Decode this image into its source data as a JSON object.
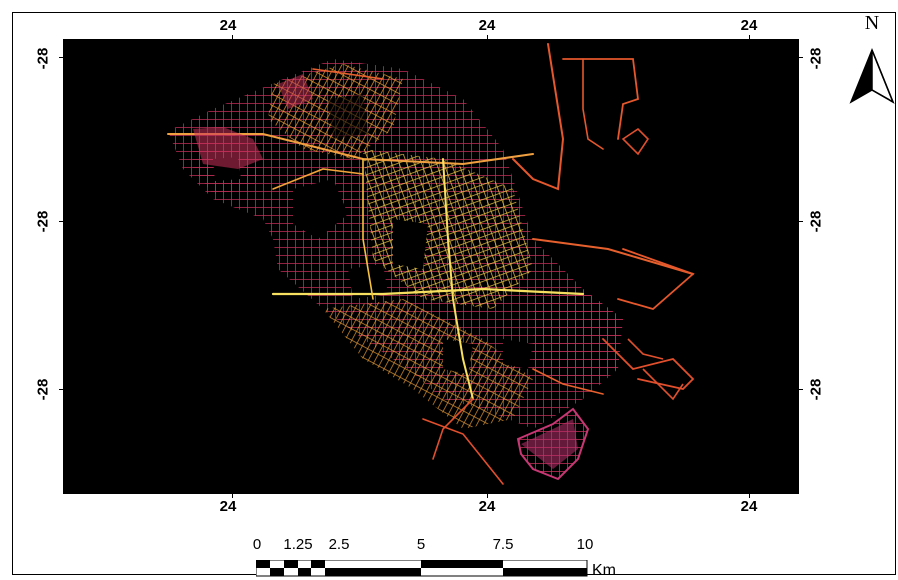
{
  "map": {
    "theme_colors": {
      "background": "#000000",
      "low": "#c2307a",
      "mid": "#f07a2c",
      "high": "#f7e960"
    },
    "grid_labels": {
      "top": [
        "24",
        "24",
        "24"
      ],
      "bottom": [
        "24",
        "24",
        "24"
      ],
      "left": [
        "-28",
        "-28",
        "-28"
      ],
      "right": [
        "-28",
        "-28",
        "-28"
      ]
    },
    "north_arrow": {
      "label": "N",
      "icon": "north-arrow-icon"
    },
    "scale_bar": {
      "labels": [
        "0",
        "1.25",
        "2.5",
        "5",
        "7.5",
        "10"
      ],
      "unit": "Km"
    }
  }
}
